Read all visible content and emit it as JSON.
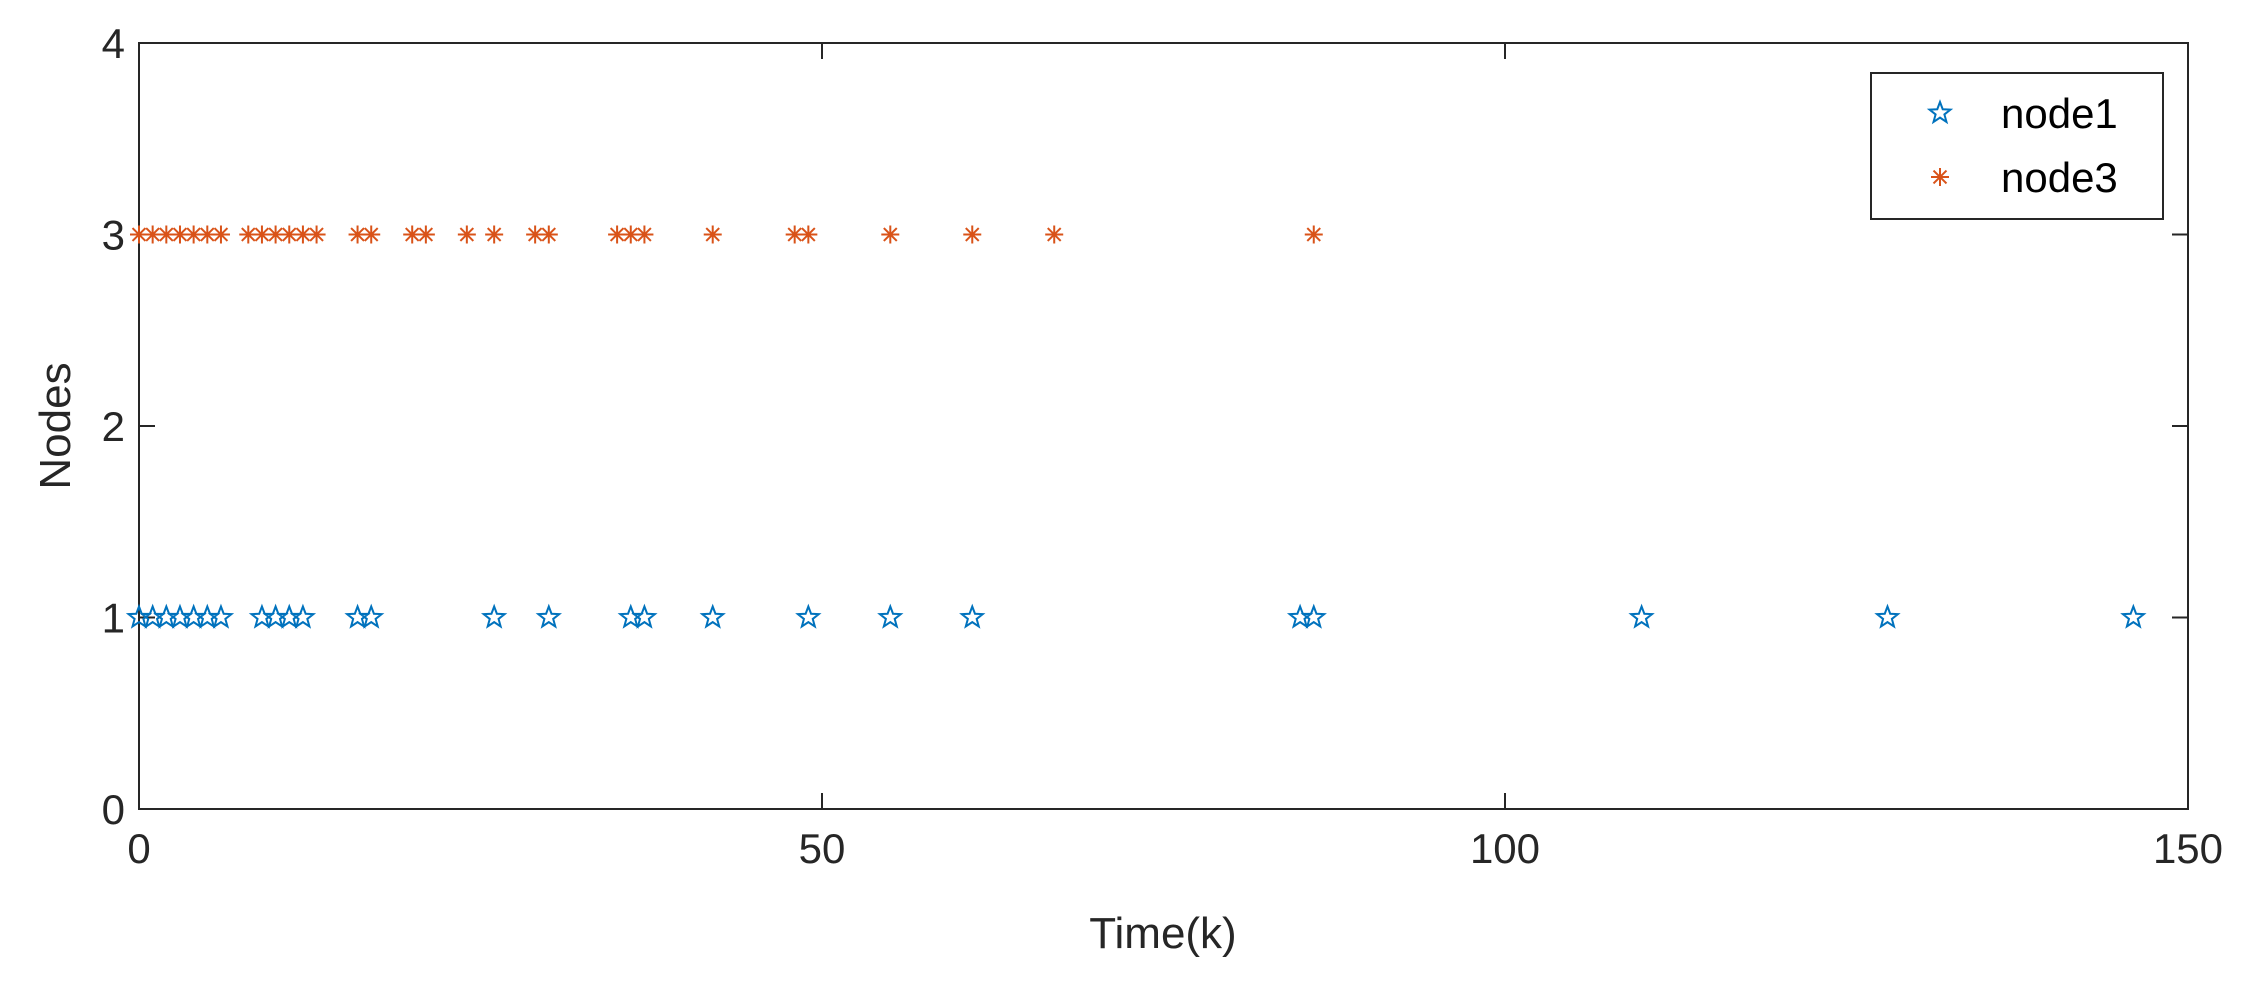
{
  "chart_data": {
    "type": "scatter",
    "title": "",
    "xlabel": "Time(k)",
    "ylabel": "Nodes",
    "xlim": [
      0,
      150
    ],
    "ylim": [
      0,
      4
    ],
    "xticks": [
      0,
      50,
      100,
      150
    ],
    "yticks": [
      0,
      1,
      2,
      3,
      4
    ],
    "grid": false,
    "legend_position": "top-right",
    "series": [
      {
        "name": "node1",
        "marker": "star",
        "color": "#0072BD",
        "x": [
          0,
          1,
          2,
          3,
          4,
          5,
          6,
          9,
          10,
          11,
          12,
          16,
          17,
          26,
          30,
          36,
          37,
          42,
          49,
          55,
          61,
          85,
          86,
          110,
          128,
          146
        ],
        "y": [
          1,
          1,
          1,
          1,
          1,
          1,
          1,
          1,
          1,
          1,
          1,
          1,
          1,
          1,
          1,
          1,
          1,
          1,
          1,
          1,
          1,
          1,
          1,
          1,
          1,
          1
        ]
      },
      {
        "name": "node3",
        "marker": "asterisk",
        "color": "#D95319",
        "x": [
          0,
          1,
          2,
          3,
          4,
          5,
          6,
          8,
          9,
          10,
          11,
          12,
          13,
          16,
          17,
          20,
          21,
          24,
          26,
          29,
          30,
          35,
          36,
          37,
          42,
          48,
          49,
          55,
          61,
          67,
          86
        ],
        "y": [
          3,
          3,
          3,
          3,
          3,
          3,
          3,
          3,
          3,
          3,
          3,
          3,
          3,
          3,
          3,
          3,
          3,
          3,
          3,
          3,
          3,
          3,
          3,
          3,
          3,
          3,
          3,
          3,
          3,
          3,
          3
        ]
      }
    ]
  }
}
